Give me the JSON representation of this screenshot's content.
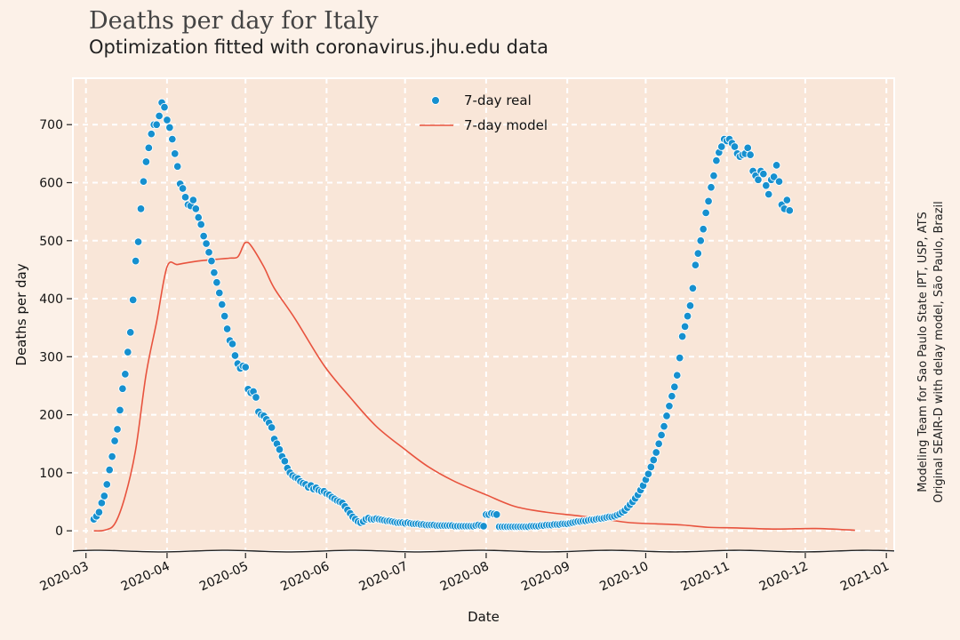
{
  "colors": {
    "page_bg": "#fcf1e8",
    "plot_bg": "#f9e6d8",
    "grid": "#ffffff",
    "real": "#1690cf",
    "model": "#e8533e"
  },
  "chart_data": {
    "type": "scatter",
    "title": "Deaths per day for Italy",
    "subtitle": "Optimization fitted with coronavirus.jhu.edu data",
    "xlabel": "Date",
    "ylabel": "Deaths per day",
    "xlim": [
      "2020-02-25",
      "2021-01-04"
    ],
    "ylim": [
      -35,
      780
    ],
    "grid": true,
    "legend_position": "top-center",
    "x_ticks": [
      "2020-03",
      "2020-04",
      "2020-05",
      "2020-06",
      "2020-07",
      "2020-08",
      "2020-09",
      "2020-10",
      "2020-11",
      "2020-12",
      "2021-01"
    ],
    "y_ticks": [
      0,
      100,
      200,
      300,
      400,
      500,
      600,
      700
    ],
    "credits": [
      "Modeling Team for Sao Paulo State IPT, USP, ATS",
      "Original SEAIR-D with delay model, São Paulo, Brazil"
    ],
    "series": [
      {
        "name": "7-day real",
        "kind": "scatter",
        "start": "2020-03-04",
        "values": [
          20,
          25,
          32,
          48,
          60,
          80,
          105,
          128,
          155,
          175,
          208,
          245,
          270,
          308,
          342,
          398,
          465,
          498,
          555,
          602,
          636,
          660,
          684,
          700,
          700,
          715,
          738,
          730,
          708,
          695,
          675,
          650,
          628,
          598,
          590,
          575,
          562,
          560,
          570,
          555,
          540,
          528,
          508,
          495,
          480,
          465,
          445,
          428,
          410,
          390,
          370,
          348,
          328,
          322,
          302,
          288,
          280,
          284,
          282,
          244,
          238,
          240,
          230,
          205,
          200,
          198,
          192,
          186,
          178,
          158,
          150,
          140,
          128,
          120,
          108,
          100,
          95,
          92,
          90,
          85,
          82,
          80,
          75,
          78,
          72,
          74,
          70,
          68,
          68,
          64,
          62,
          58,
          55,
          52,
          50,
          48,
          42,
          36,
          30,
          24,
          20,
          16,
          14,
          16,
          20,
          22,
          20,
          20,
          21,
          20,
          19,
          18,
          17,
          17,
          16,
          15,
          14,
          14,
          14,
          13,
          14,
          13,
          12,
          12,
          12,
          11,
          11,
          10,
          10,
          10,
          10,
          9,
          9,
          9,
          9,
          9,
          9,
          9,
          8,
          8,
          8,
          8,
          8,
          8,
          8,
          8,
          9,
          10,
          9,
          8,
          28,
          28,
          30,
          29,
          28,
          7,
          7,
          7,
          7,
          7,
          7,
          7,
          7,
          7,
          7,
          7,
          7,
          8,
          8,
          8,
          8,
          9,
          9,
          10,
          10,
          10,
          11,
          11,
          11,
          12,
          12,
          12,
          13,
          14,
          15,
          16,
          16,
          17,
          17,
          18,
          19,
          19,
          20,
          21,
          21,
          22,
          23,
          24,
          24,
          25,
          27,
          29,
          32,
          35,
          40,
          45,
          50,
          56,
          62,
          70,
          78,
          88,
          98,
          110,
          122,
          135,
          150,
          165,
          180,
          198,
          215,
          232,
          248,
          268,
          298,
          335,
          352,
          370,
          388,
          418,
          458,
          478,
          500,
          520,
          548,
          568,
          592,
          612,
          638,
          652,
          662,
          675,
          672,
          675,
          668,
          662,
          650,
          645,
          648,
          650,
          660,
          648,
          620,
          612,
          605,
          620,
          615,
          595,
          580,
          605,
          610,
          630,
          602,
          562,
          555,
          570,
          552
        ]
      },
      {
        "name": "7-day model",
        "kind": "line",
        "points": [
          [
            "2020-03-04",
            0
          ],
          [
            "2020-03-08",
            1
          ],
          [
            "2020-03-12",
            12
          ],
          [
            "2020-03-16",
            60
          ],
          [
            "2020-03-20",
            140
          ],
          [
            "2020-03-24",
            270
          ],
          [
            "2020-03-28",
            360
          ],
          [
            "2020-04-01",
            455
          ],
          [
            "2020-04-05",
            459
          ],
          [
            "2020-04-10",
            463
          ],
          [
            "2020-04-15",
            466
          ],
          [
            "2020-04-20",
            468
          ],
          [
            "2020-04-25",
            470
          ],
          [
            "2020-04-28",
            472
          ],
          [
            "2020-04-30",
            490
          ],
          [
            "2020-05-01",
            497
          ],
          [
            "2020-05-03",
            492
          ],
          [
            "2020-05-08",
            455
          ],
          [
            "2020-05-12",
            418
          ],
          [
            "2020-05-20",
            365
          ],
          [
            "2020-05-31",
            285
          ],
          [
            "2020-06-10",
            230
          ],
          [
            "2020-06-20",
            180
          ],
          [
            "2020-07-01",
            140
          ],
          [
            "2020-07-10",
            110
          ],
          [
            "2020-07-20",
            85
          ],
          [
            "2020-08-01",
            62
          ],
          [
            "2020-08-12",
            42
          ],
          [
            "2020-08-24",
            32
          ],
          [
            "2020-09-05",
            26
          ],
          [
            "2020-09-15",
            20
          ],
          [
            "2020-09-25",
            14
          ],
          [
            "2020-10-05",
            12
          ],
          [
            "2020-10-15",
            10
          ],
          [
            "2020-10-25",
            6
          ],
          [
            "2020-11-05",
            5
          ],
          [
            "2020-11-20",
            3
          ],
          [
            "2020-12-05",
            4
          ],
          [
            "2020-12-20",
            1
          ]
        ]
      }
    ]
  }
}
